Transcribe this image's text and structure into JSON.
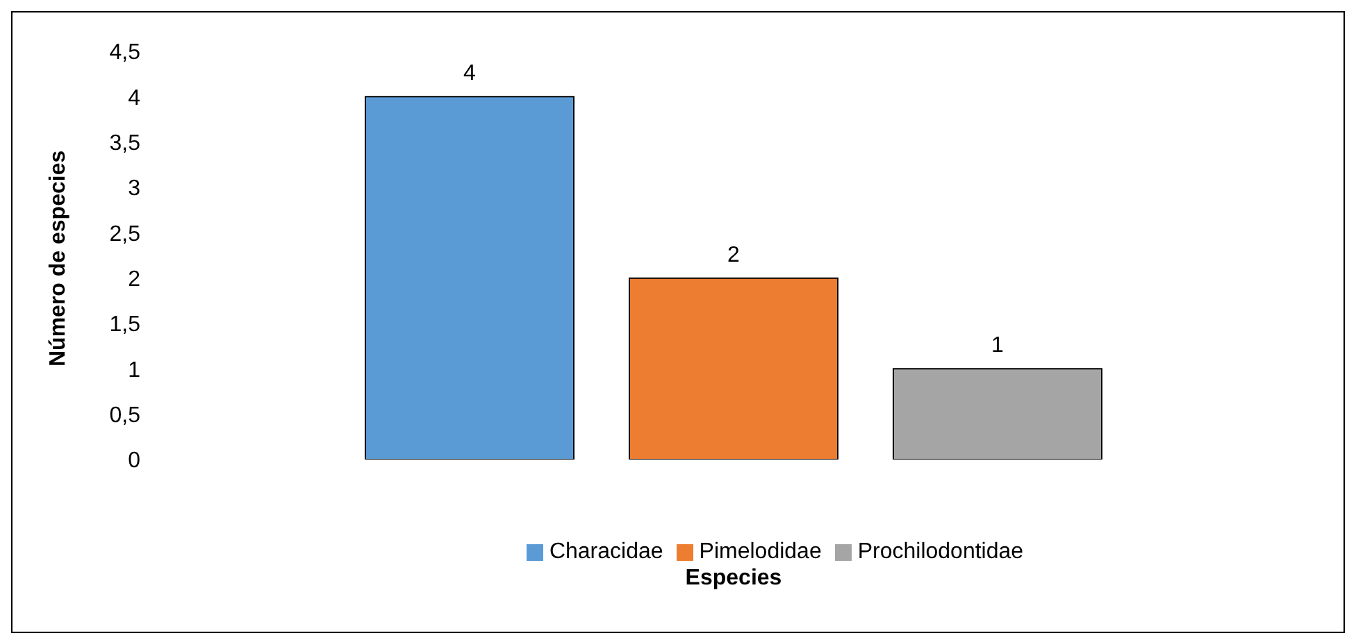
{
  "chart_data": {
    "type": "bar",
    "xlabel": "Especies",
    "ylabel": "Número de especies",
    "categories": [
      null
    ],
    "series": [
      {
        "name": "Characidae",
        "color": "#5b9bd5",
        "values": [
          4
        ]
      },
      {
        "name": "Pimelodidae",
        "color": "#ed7d31",
        "values": [
          2
        ]
      },
      {
        "name": "Prochilodontidae",
        "color": "#a5a5a5",
        "values": [
          1
        ]
      }
    ],
    "ylim": [
      0,
      4.5
    ],
    "yticks": [
      0,
      {
        "value": 0.5,
        "label": "0,5"
      },
      1,
      {
        "value": 1.5,
        "label": "1,5"
      },
      2,
      {
        "value": 2.5,
        "label": "2,5"
      },
      3,
      {
        "value": 3.5,
        "label": "3,5"
      },
      4,
      {
        "value": 4.5,
        "label": "4,5"
      }
    ],
    "grid": false,
    "legend": "bottom",
    "data_labels": true
  }
}
